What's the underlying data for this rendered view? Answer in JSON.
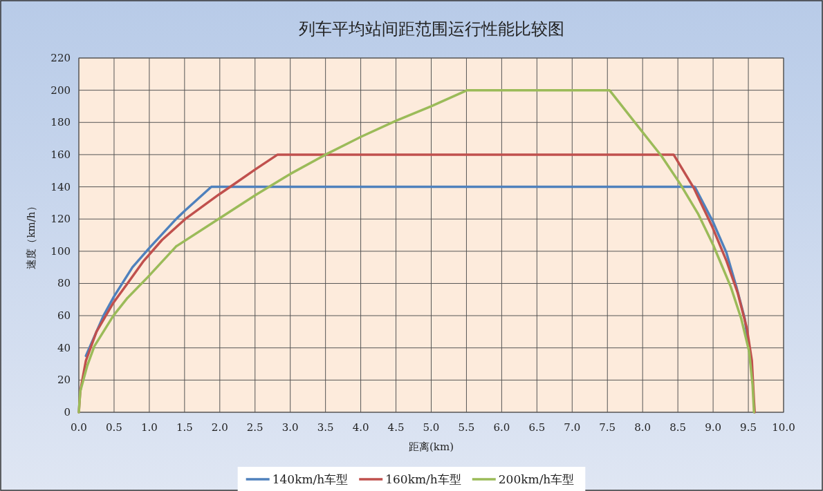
{
  "chart_data": {
    "type": "line",
    "title": "列车平均站间距范围运行性能比较图",
    "xlabel": "距离(km)",
    "ylabel": "速度（km/h）",
    "xlim": [
      0,
      10
    ],
    "ylim": [
      0,
      220
    ],
    "xticks": [
      {
        "value": 0,
        "label": "0.0"
      },
      {
        "value": 0.5,
        "label": "0.5"
      },
      {
        "value": 1,
        "label": "1.0"
      },
      {
        "value": 1.5,
        "label": "1.5"
      },
      {
        "value": 2,
        "label": "2.0"
      },
      {
        "value": 2.5,
        "label": "2.5"
      },
      {
        "value": 3,
        "label": "3.0"
      },
      {
        "value": 3.5,
        "label": "3.5"
      },
      {
        "value": 4,
        "label": "4.0"
      },
      {
        "value": 4.5,
        "label": "4.5"
      },
      {
        "value": 5,
        "label": "5.0"
      },
      {
        "value": 5.5,
        "label": "5.5"
      },
      {
        "value": 6,
        "label": "6.0"
      },
      {
        "value": 6.5,
        "label": "6.5"
      },
      {
        "value": 7,
        "label": "7.0"
      },
      {
        "value": 7.5,
        "label": "7.5"
      },
      {
        "value": 8,
        "label": "8.0"
      },
      {
        "value": 8.5,
        "label": "8.5"
      },
      {
        "value": 9,
        "label": "9.0"
      },
      {
        "value": 9.5,
        "label": "9.5"
      },
      {
        "value": 10,
        "label": "10.0"
      }
    ],
    "yticks": [
      0,
      20,
      40,
      60,
      80,
      100,
      120,
      140,
      160,
      180,
      200,
      220
    ],
    "grid": true,
    "legend": "bottom",
    "marker": "none",
    "line_style": "solid",
    "series": [
      {
        "name": "140km/h车型",
        "color": "#4f81bd",
        "x": [
          0.1,
          0.35,
          0.5,
          0.76,
          1.0,
          1.38,
          1.5,
          1.88,
          8.74,
          8.99,
          9.19,
          9.33,
          9.45,
          9.51
        ],
        "values": [
          35,
          60,
          72,
          90,
          102,
          120,
          125,
          140,
          140,
          119,
          99,
          78,
          58,
          38
        ]
      },
      {
        "name": "160km/h车型",
        "color": "#c0504d",
        "x": [
          0,
          0.02,
          0.1,
          0.25,
          0.49,
          0.69,
          0.92,
          1.18,
          1.51,
          1.98,
          2.18,
          2.51,
          2.82,
          8.44,
          8.73,
          8.99,
          9.19,
          9.35,
          9.48,
          9.55,
          9.58,
          9.59
        ],
        "values": [
          0,
          13,
          32,
          50,
          68,
          80,
          94,
          107,
          120,
          135,
          141,
          151,
          160,
          160,
          139,
          115,
          94,
          74,
          52,
          32,
          7,
          0
        ]
      },
      {
        "name": "200km/h车型",
        "color": "#9bbb59",
        "x": [
          0,
          0.02,
          0.12,
          0.22,
          0.49,
          0.69,
          0.98,
          1.38,
          1.98,
          2.51,
          3.0,
          3.5,
          4.0,
          4.5,
          5.0,
          5.51,
          7.53,
          7.98,
          8.27,
          8.53,
          8.79,
          9.0,
          9.25,
          9.4,
          9.51,
          9.56,
          9.58
        ],
        "values": [
          0,
          13,
          29,
          41,
          60,
          71,
          84,
          103,
          120,
          135,
          148,
          160,
          171,
          181,
          190,
          200,
          200,
          175,
          159,
          142,
          123,
          104,
          78,
          58,
          38,
          17,
          0
        ]
      }
    ]
  }
}
